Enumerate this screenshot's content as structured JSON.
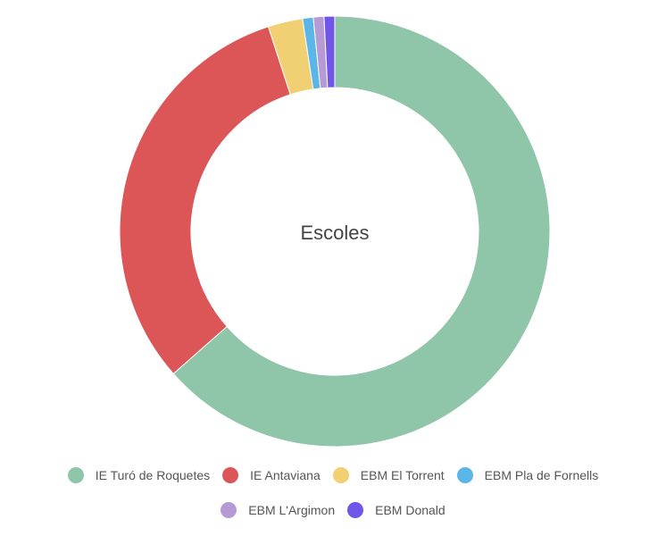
{
  "chart_data": {
    "type": "pie",
    "variant": "donut",
    "title": "Escoles",
    "legend_position": "bottom",
    "series": [
      {
        "name": "IE Turó de Roquetes",
        "value": 63.5,
        "color": "#8fc5a9"
      },
      {
        "name": "IE Antaviana",
        "value": 31.5,
        "color": "#dc5557"
      },
      {
        "name": "EBM El Torrent",
        "value": 2.6,
        "color": "#f0d072"
      },
      {
        "name": "EBM Pla de Fornells",
        "value": 0.8,
        "color": "#5ab6e6"
      },
      {
        "name": "EBM L'Argimon",
        "value": 0.8,
        "color": "#b59ad6"
      },
      {
        "name": "EBM Donald",
        "value": 0.8,
        "color": "#7155e8"
      }
    ]
  }
}
